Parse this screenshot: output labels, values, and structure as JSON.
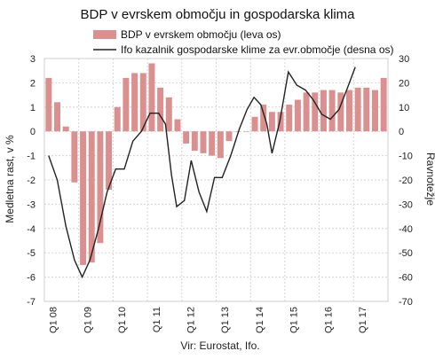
{
  "chart_data": {
    "type": "bar+line",
    "title": "BDP v evrskem območju in gospodarska klima",
    "source": "Vir: Eurostat, Ifo.",
    "left_axis_label": "Medletna rast, v %",
    "right_axis_label": "Ravnotežje",
    "left_ylim": [
      -7,
      3
    ],
    "right_ylim": [
      -70,
      30
    ],
    "left_ticks": [
      "3",
      "2",
      "1",
      "0",
      "-1",
      "-2",
      "-3",
      "-4",
      "-5",
      "-6",
      "-7"
    ],
    "right_ticks": [
      "30",
      "20",
      "10",
      "0",
      "-10",
      "-20",
      "-30",
      "-40",
      "-50",
      "-60",
      "-70"
    ],
    "x_tick_labels": [
      "Q1 08",
      "Q1 09",
      "Q1 10",
      "Q1 11",
      "Q1 12",
      "Q1 13",
      "Q1 14",
      "Q1 15",
      "Q1 16",
      "Q1 17"
    ],
    "quarters_count": 40,
    "legend_position": "top",
    "bars": {
      "name": "BDP v evrskem območju (leva os)",
      "color": "#d9908f",
      "values": [
        2.2,
        1.2,
        0.2,
        -2.1,
        -5.5,
        -5.4,
        -4.6,
        -2.4,
        1.0,
        2.2,
        2.4,
        2.4,
        2.8,
        1.8,
        1.4,
        0.5,
        -0.5,
        -0.8,
        -0.9,
        -1.0,
        -1.1,
        -0.4,
        0.0,
        0.0,
        0.6,
        1.1,
        0.8,
        0.8,
        1.1,
        1.3,
        1.6,
        1.6,
        1.7,
        1.7,
        1.6,
        1.7,
        1.8,
        1.8,
        1.7,
        2.2
      ]
    },
    "line": {
      "name": "Ifo kazalnik gospodarske klime za evr.območje (desna os)",
      "color": "#222222",
      "points": [
        [
          0,
          -10
        ],
        [
          1,
          -20
        ],
        [
          2,
          -39
        ],
        [
          3,
          -53
        ],
        [
          3.9,
          -60
        ],
        [
          4.8,
          -53
        ],
        [
          5.8,
          -40
        ],
        [
          6.8,
          -25
        ],
        [
          7.8,
          -15.5
        ],
        [
          8.8,
          -15.5
        ],
        [
          9.8,
          -4
        ],
        [
          10.8,
          0
        ],
        [
          11.8,
          7.5
        ],
        [
          12.8,
          7.5
        ],
        [
          13.6,
          3
        ],
        [
          14.3,
          -18
        ],
        [
          14.9,
          -31
        ],
        [
          15.8,
          -28.5
        ],
        [
          16.6,
          -12
        ],
        [
          17.5,
          -25
        ],
        [
          18.4,
          -33
        ],
        [
          19.3,
          -19
        ],
        [
          20.2,
          -19
        ],
        [
          21.2,
          -10
        ],
        [
          22.2,
          1
        ],
        [
          23.1,
          9
        ],
        [
          23.9,
          14
        ],
        [
          24.7,
          11
        ],
        [
          25.4,
          3
        ],
        [
          26.0,
          -9
        ],
        [
          26.9,
          4
        ],
        [
          27.9,
          24.5
        ],
        [
          28.9,
          19
        ],
        [
          29.9,
          17
        ],
        [
          30.8,
          13
        ],
        [
          31.8,
          7
        ],
        [
          32.8,
          5
        ],
        [
          33.8,
          9
        ],
        [
          34.8,
          18
        ],
        [
          35.7,
          26.5
        ]
      ]
    }
  }
}
